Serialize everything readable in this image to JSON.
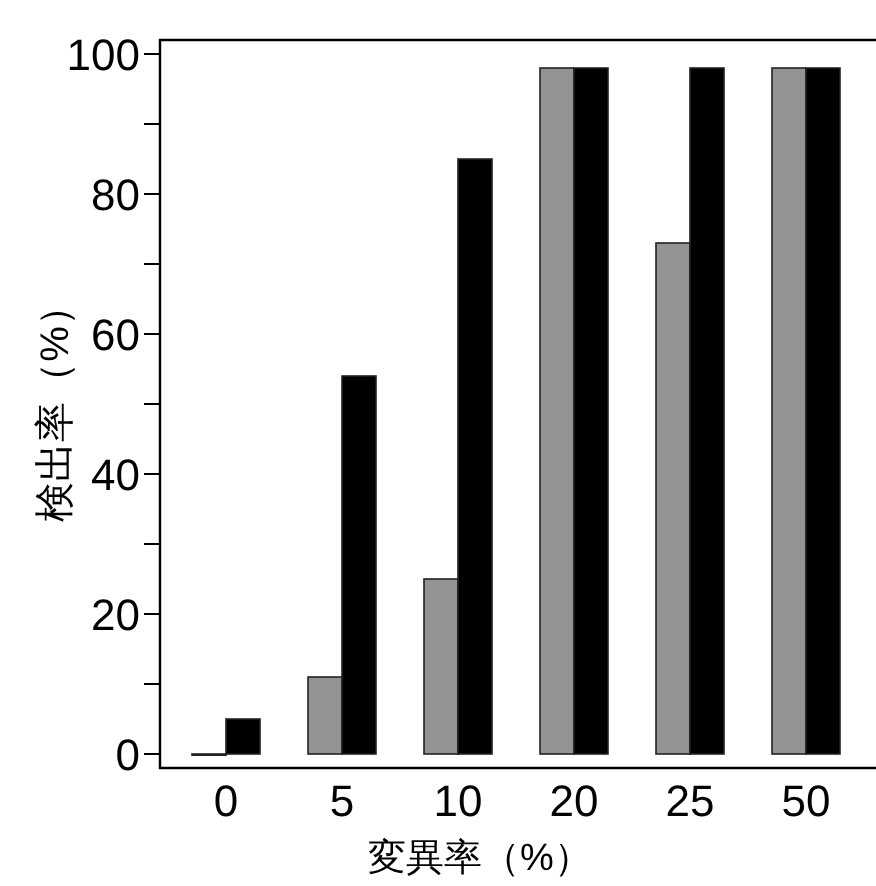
{
  "chart_data": {
    "type": "bar",
    "xlabel": "変異率（%）",
    "ylabel": "検出率（%）",
    "categories": [
      "0",
      "5",
      "10",
      "20",
      "25",
      "50"
    ],
    "series": [
      {
        "color": "#939393",
        "values": [
          0,
          11,
          25,
          98,
          73,
          98
        ]
      },
      {
        "color": "#000000",
        "values": [
          5,
          54,
          85,
          98,
          98,
          98
        ]
      }
    ],
    "ylim": [
      -2,
      102
    ],
    "yticks": [
      0,
      {
        "value": 10,
        "label": null
      },
      20,
      {
        "value": 30,
        "label": null
      },
      40,
      {
        "value": 50,
        "label": null
      },
      60,
      {
        "value": 70,
        "label": null
      },
      80,
      {
        "value": 90,
        "label": null
      },
      100
    ],
    "grid": false,
    "legend": false
  }
}
